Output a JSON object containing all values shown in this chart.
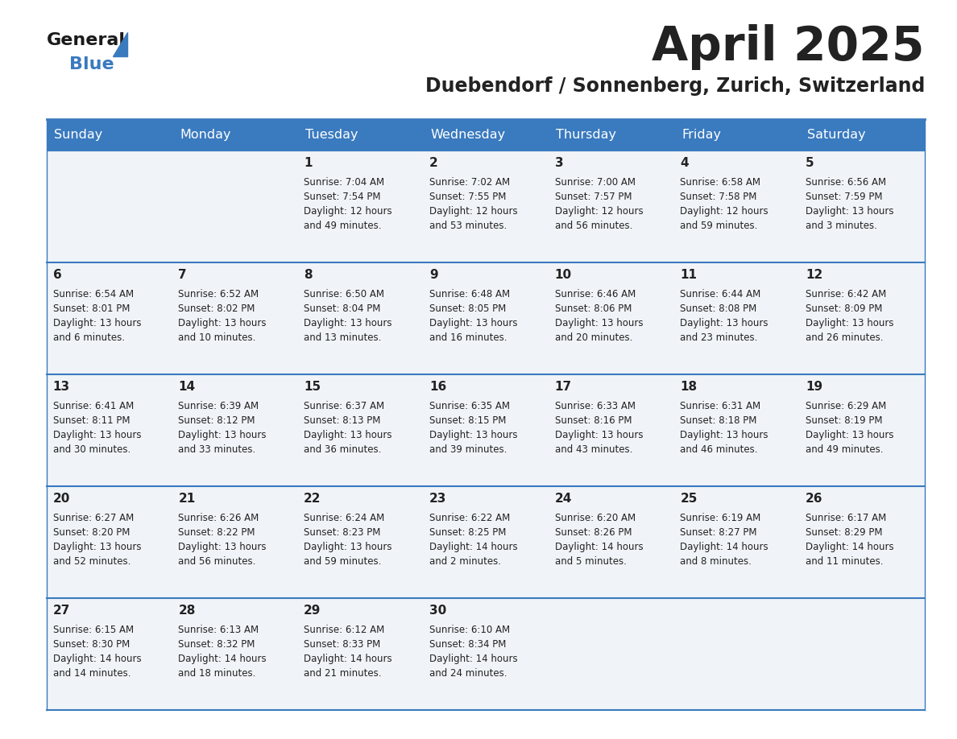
{
  "title": "April 2025",
  "subtitle": "Duebendorf / Sonnenberg, Zurich, Switzerland",
  "header_bg": "#3a7abf",
  "header_text_color": "#ffffff",
  "cell_bg": "#f0f4f8",
  "row_line_color": "#3a7abf",
  "text_color": "#222222",
  "days_of_week": [
    "Sunday",
    "Monday",
    "Tuesday",
    "Wednesday",
    "Thursday",
    "Friday",
    "Saturday"
  ],
  "calendar_data": [
    [
      {
        "day": "",
        "info": ""
      },
      {
        "day": "",
        "info": ""
      },
      {
        "day": "1",
        "info": "Sunrise: 7:04 AM\nSunset: 7:54 PM\nDaylight: 12 hours\nand 49 minutes."
      },
      {
        "day": "2",
        "info": "Sunrise: 7:02 AM\nSunset: 7:55 PM\nDaylight: 12 hours\nand 53 minutes."
      },
      {
        "day": "3",
        "info": "Sunrise: 7:00 AM\nSunset: 7:57 PM\nDaylight: 12 hours\nand 56 minutes."
      },
      {
        "day": "4",
        "info": "Sunrise: 6:58 AM\nSunset: 7:58 PM\nDaylight: 12 hours\nand 59 minutes."
      },
      {
        "day": "5",
        "info": "Sunrise: 6:56 AM\nSunset: 7:59 PM\nDaylight: 13 hours\nand 3 minutes."
      }
    ],
    [
      {
        "day": "6",
        "info": "Sunrise: 6:54 AM\nSunset: 8:01 PM\nDaylight: 13 hours\nand 6 minutes."
      },
      {
        "day": "7",
        "info": "Sunrise: 6:52 AM\nSunset: 8:02 PM\nDaylight: 13 hours\nand 10 minutes."
      },
      {
        "day": "8",
        "info": "Sunrise: 6:50 AM\nSunset: 8:04 PM\nDaylight: 13 hours\nand 13 minutes."
      },
      {
        "day": "9",
        "info": "Sunrise: 6:48 AM\nSunset: 8:05 PM\nDaylight: 13 hours\nand 16 minutes."
      },
      {
        "day": "10",
        "info": "Sunrise: 6:46 AM\nSunset: 8:06 PM\nDaylight: 13 hours\nand 20 minutes."
      },
      {
        "day": "11",
        "info": "Sunrise: 6:44 AM\nSunset: 8:08 PM\nDaylight: 13 hours\nand 23 minutes."
      },
      {
        "day": "12",
        "info": "Sunrise: 6:42 AM\nSunset: 8:09 PM\nDaylight: 13 hours\nand 26 minutes."
      }
    ],
    [
      {
        "day": "13",
        "info": "Sunrise: 6:41 AM\nSunset: 8:11 PM\nDaylight: 13 hours\nand 30 minutes."
      },
      {
        "day": "14",
        "info": "Sunrise: 6:39 AM\nSunset: 8:12 PM\nDaylight: 13 hours\nand 33 minutes."
      },
      {
        "day": "15",
        "info": "Sunrise: 6:37 AM\nSunset: 8:13 PM\nDaylight: 13 hours\nand 36 minutes."
      },
      {
        "day": "16",
        "info": "Sunrise: 6:35 AM\nSunset: 8:15 PM\nDaylight: 13 hours\nand 39 minutes."
      },
      {
        "day": "17",
        "info": "Sunrise: 6:33 AM\nSunset: 8:16 PM\nDaylight: 13 hours\nand 43 minutes."
      },
      {
        "day": "18",
        "info": "Sunrise: 6:31 AM\nSunset: 8:18 PM\nDaylight: 13 hours\nand 46 minutes."
      },
      {
        "day": "19",
        "info": "Sunrise: 6:29 AM\nSunset: 8:19 PM\nDaylight: 13 hours\nand 49 minutes."
      }
    ],
    [
      {
        "day": "20",
        "info": "Sunrise: 6:27 AM\nSunset: 8:20 PM\nDaylight: 13 hours\nand 52 minutes."
      },
      {
        "day": "21",
        "info": "Sunrise: 6:26 AM\nSunset: 8:22 PM\nDaylight: 13 hours\nand 56 minutes."
      },
      {
        "day": "22",
        "info": "Sunrise: 6:24 AM\nSunset: 8:23 PM\nDaylight: 13 hours\nand 59 minutes."
      },
      {
        "day": "23",
        "info": "Sunrise: 6:22 AM\nSunset: 8:25 PM\nDaylight: 14 hours\nand 2 minutes."
      },
      {
        "day": "24",
        "info": "Sunrise: 6:20 AM\nSunset: 8:26 PM\nDaylight: 14 hours\nand 5 minutes."
      },
      {
        "day": "25",
        "info": "Sunrise: 6:19 AM\nSunset: 8:27 PM\nDaylight: 14 hours\nand 8 minutes."
      },
      {
        "day": "26",
        "info": "Sunrise: 6:17 AM\nSunset: 8:29 PM\nDaylight: 14 hours\nand 11 minutes."
      }
    ],
    [
      {
        "day": "27",
        "info": "Sunrise: 6:15 AM\nSunset: 8:30 PM\nDaylight: 14 hours\nand 14 minutes."
      },
      {
        "day": "28",
        "info": "Sunrise: 6:13 AM\nSunset: 8:32 PM\nDaylight: 14 hours\nand 18 minutes."
      },
      {
        "day": "29",
        "info": "Sunrise: 6:12 AM\nSunset: 8:33 PM\nDaylight: 14 hours\nand 21 minutes."
      },
      {
        "day": "30",
        "info": "Sunrise: 6:10 AM\nSunset: 8:34 PM\nDaylight: 14 hours\nand 24 minutes."
      },
      {
        "day": "",
        "info": ""
      },
      {
        "day": "",
        "info": ""
      },
      {
        "day": "",
        "info": ""
      }
    ]
  ],
  "logo_general_color": "#1a1a1a",
  "logo_blue_color": "#3a7abf",
  "title_fontsize": 42,
  "subtitle_fontsize": 17,
  "header_fontsize": 11.5,
  "day_num_fontsize": 11,
  "info_fontsize": 8.5
}
